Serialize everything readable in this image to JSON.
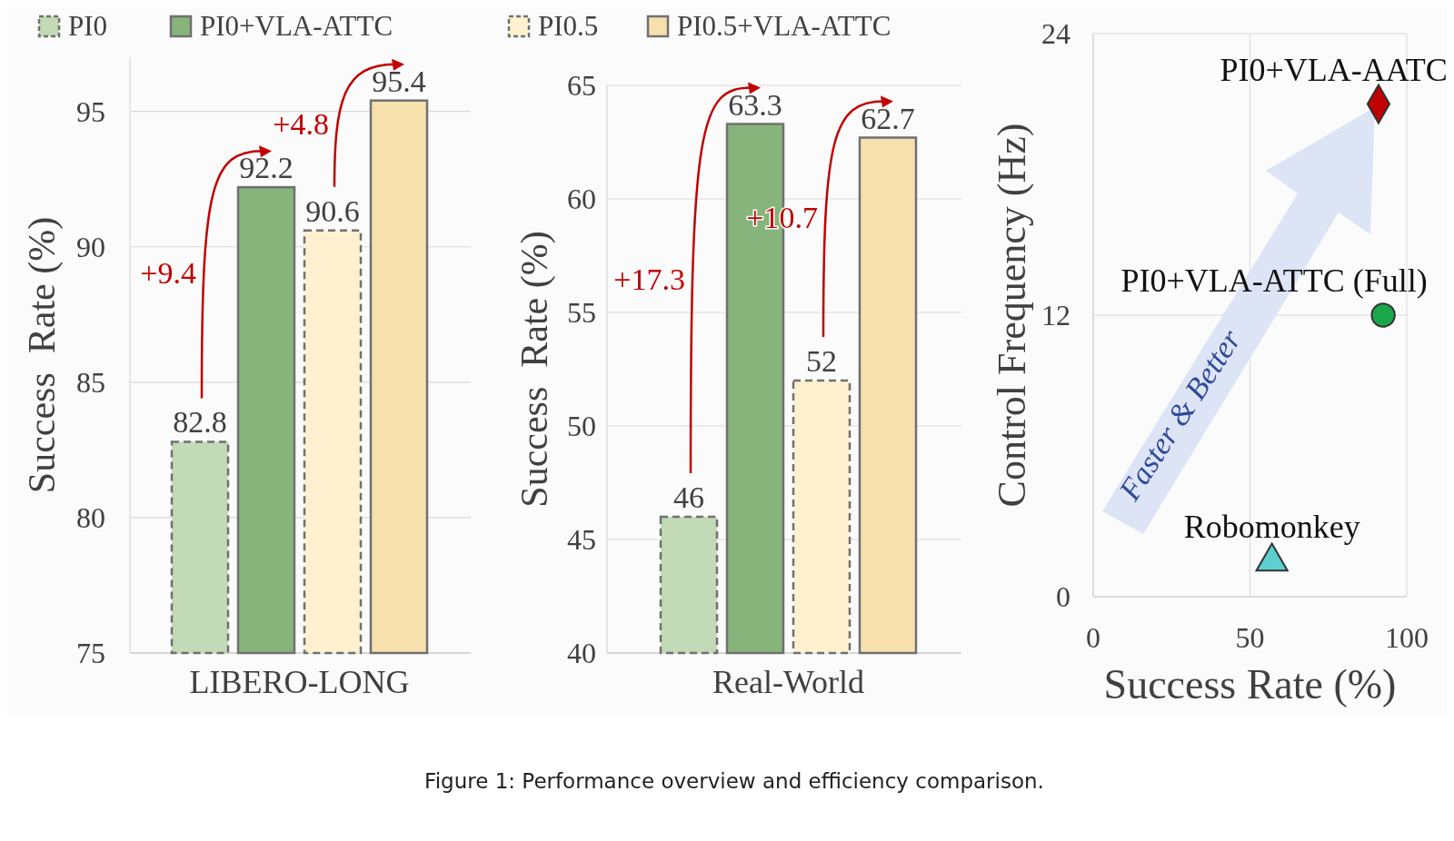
{
  "chart_data": [
    {
      "type": "bar",
      "categories": [
        null,
        null,
        null,
        null
      ],
      "xlabel": "LIBERO-LONG",
      "ylabel": "Success  Rate (%)",
      "ylim": [
        75,
        97
      ],
      "yticks": [
        75,
        80,
        85,
        90,
        95
      ],
      "grid": "y",
      "legend": "top",
      "data_labels": true,
      "series": [
        {
          "name": "PI0",
          "color": "#c2dab6",
          "values": [
            82.8,
            null,
            null,
            null
          ],
          "line_style": "dashed"
        },
        {
          "name": "PI0+VLA-ATTC",
          "color": "#86b47b",
          "values": [
            null,
            92.2,
            null,
            null
          ],
          "line_style": "solid"
        },
        {
          "name": "PI0.5",
          "color": "#fff1cf",
          "values": [
            null,
            null,
            90.6,
            null
          ],
          "line_style": "dashed"
        },
        {
          "name": "PI0.5+VLA-ATTC",
          "color": "#f6e0ac",
          "values": [
            null,
            null,
            null,
            95.4
          ],
          "line_style": "solid"
        }
      ],
      "annotations": [
        "+9.4",
        "+4.8"
      ]
    },
    {
      "type": "bar",
      "categories": [
        null,
        null,
        null,
        null
      ],
      "xlabel": "Real-World",
      "ylabel": "Success  Rate (%)",
      "ylim": [
        40,
        65
      ],
      "yticks": [
        40,
        45,
        50,
        55,
        60,
        65
      ],
      "grid": "y",
      "data_labels": true,
      "series": [
        {
          "color": "#c2dab6",
          "values": [
            46,
            null,
            null,
            null
          ],
          "line_style": "dashed"
        },
        {
          "color": "#86b47b",
          "values": [
            null,
            63.3,
            null,
            null
          ],
          "line_style": "solid"
        },
        {
          "color": "#fff1cf",
          "values": [
            null,
            null,
            52,
            null
          ],
          "line_style": "dashed"
        },
        {
          "color": "#f6e0ac",
          "values": [
            null,
            null,
            null,
            62.7
          ],
          "line_style": "solid"
        }
      ],
      "annotations": [
        "+17.3",
        "+10.7"
      ]
    },
    {
      "type": "scatter",
      "xlabel": "Success Rate (%)",
      "ylabel": "Control Frequency (Hz)",
      "xlim": [
        0,
        100
      ],
      "ylim": [
        0,
        24
      ],
      "xticks": [
        0,
        50,
        100
      ],
      "yticks": [
        0,
        12,
        24
      ],
      "grid": true,
      "series": [
        {
          "name": "PI0+VLA-AATC",
          "color": "#c00000",
          "x": [
            91
          ],
          "values": [
            21
          ],
          "marker": "diamond"
        },
        {
          "name": "PI0+VLA-ATTC (Full)",
          "color": "#1aa64a",
          "x": [
            92.5
          ],
          "values": [
            12
          ],
          "marker": "circle"
        },
        {
          "name": "Robomonkey",
          "color": "#5ecfcf",
          "x": [
            57
          ],
          "values": [
            1.5
          ],
          "marker": "triangle"
        }
      ],
      "annotations": [
        "Faster & Better",
        "Figure 1: Performance overview and efficiency comparison."
      ]
    }
  ]
}
